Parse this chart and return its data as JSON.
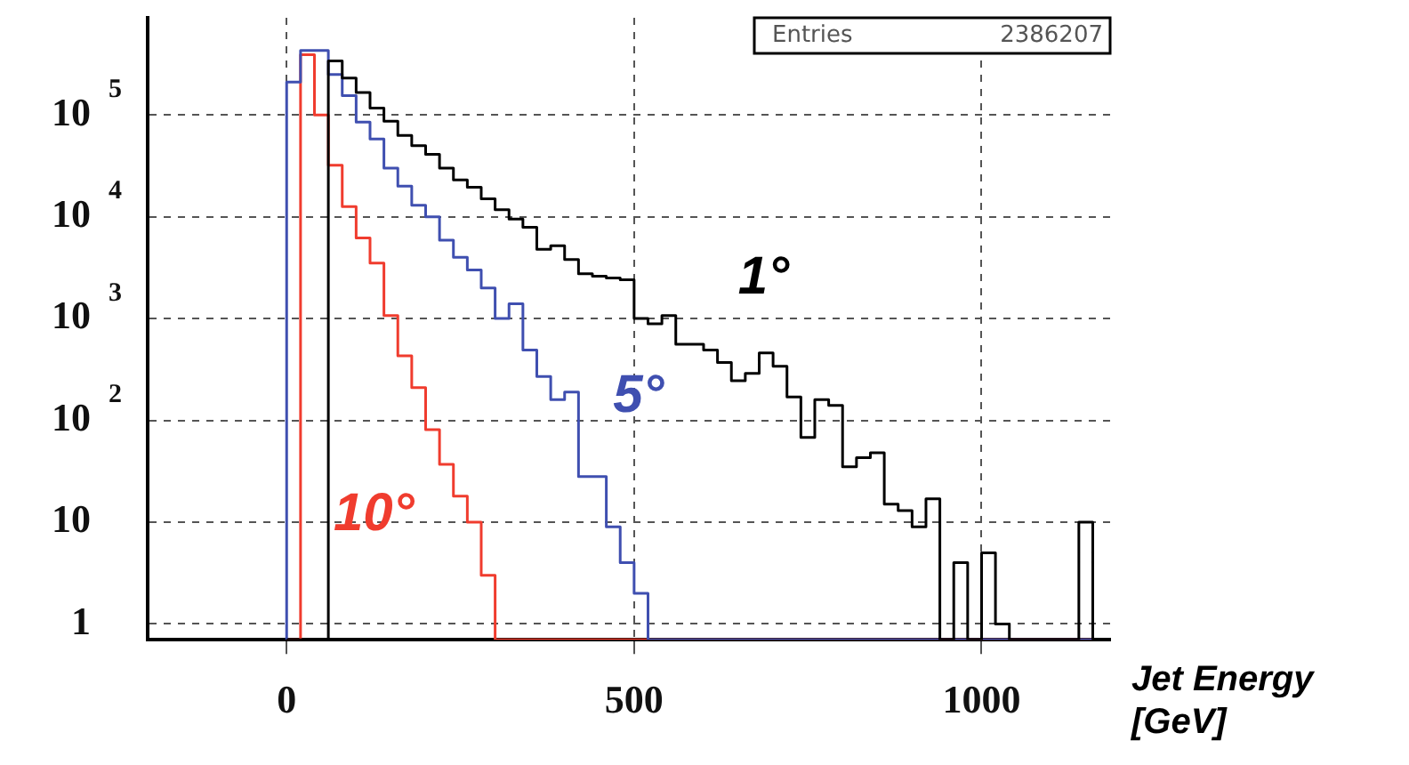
{
  "chart_data": {
    "type": "histogram",
    "xlabel": "Jet Energy [GeV]",
    "bins": [
      0,
      20,
      40,
      60,
      80,
      100,
      120,
      140,
      160,
      180,
      200,
      220,
      240,
      260,
      280,
      300,
      320,
      340,
      360,
      380,
      400,
      420,
      440,
      460,
      480,
      500,
      520,
      540,
      560,
      580,
      600,
      620,
      640,
      660,
      680,
      700,
      720,
      740,
      760,
      780,
      800,
      820,
      840,
      860,
      880,
      900,
      920,
      940,
      960,
      980,
      1000,
      1020,
      1040,
      1060,
      1080,
      1100,
      1120,
      1140,
      1160
    ],
    "series": [
      {
        "name": "1°",
        "color": "#000000",
        "values": [
          null,
          null,
          null,
          340000,
          230000,
          166000,
          117000,
          87000,
          63000,
          50000,
          41000,
          30000,
          23000,
          19500,
          15000,
          11700,
          9500,
          7900,
          4800,
          5200,
          3800,
          2750,
          2600,
          2500,
          2400,
          1000,
          890,
          1070,
          560,
          560,
          490,
          370,
          245,
          290,
          460,
          340,
          170,
          68,
          160,
          140,
          35,
          43,
          48,
          15,
          13,
          9,
          17,
          null,
          4,
          null,
          5,
          1,
          null,
          null,
          null,
          null,
          null,
          10
        ]
      },
      {
        "name": "5°",
        "color": "#3f4fb0",
        "values": [
          210000,
          430000,
          430000,
          250000,
          155000,
          85000,
          58000,
          30000,
          20000,
          13000,
          10000,
          5900,
          4000,
          3000,
          2000,
          1000,
          1400,
          490,
          270,
          160,
          190,
          28,
          28,
          9,
          4,
          2,
          null,
          null,
          null,
          null,
          null,
          null,
          null,
          null,
          null,
          null,
          null,
          null,
          null,
          null,
          null,
          null,
          null,
          null,
          null,
          null,
          null,
          null,
          null,
          null,
          null,
          null,
          null,
          null,
          null,
          null,
          null,
          null
        ]
      },
      {
        "name": "10°",
        "color": "#f03c2e",
        "values": [
          null,
          390000,
          100000,
          32000,
          12600,
          6200,
          3500,
          1070,
          430,
          210,
          81,
          37,
          18,
          10,
          3,
          null,
          null,
          null,
          null,
          null,
          null,
          null,
          null,
          null,
          null,
          null,
          null,
          null,
          null,
          null,
          null,
          null,
          null,
          null,
          null,
          null,
          null,
          null,
          null,
          null,
          null,
          null,
          null,
          null,
          null,
          null,
          null,
          null,
          null,
          null,
          null,
          null,
          null,
          null,
          null,
          null,
          null,
          null
        ]
      }
    ],
    "xlim": [
      -200,
      1185
    ],
    "xticks": [
      0,
      500,
      1000
    ],
    "ylim": [
      0.7,
      900000
    ],
    "yticks": [
      1,
      10,
      {
        "value": 100,
        "label": "10$^{2}$"
      },
      {
        "value": 1000,
        "label": "10$^{3}$"
      },
      {
        "value": 10000,
        "label": "10$^{4}$"
      },
      {
        "value": 100000,
        "label": "10$^{5}$"
      }
    ],
    "log": true,
    "grid": true,
    "legend": false,
    "annotations": [
      "Entries",
      "2386207"
    ]
  }
}
